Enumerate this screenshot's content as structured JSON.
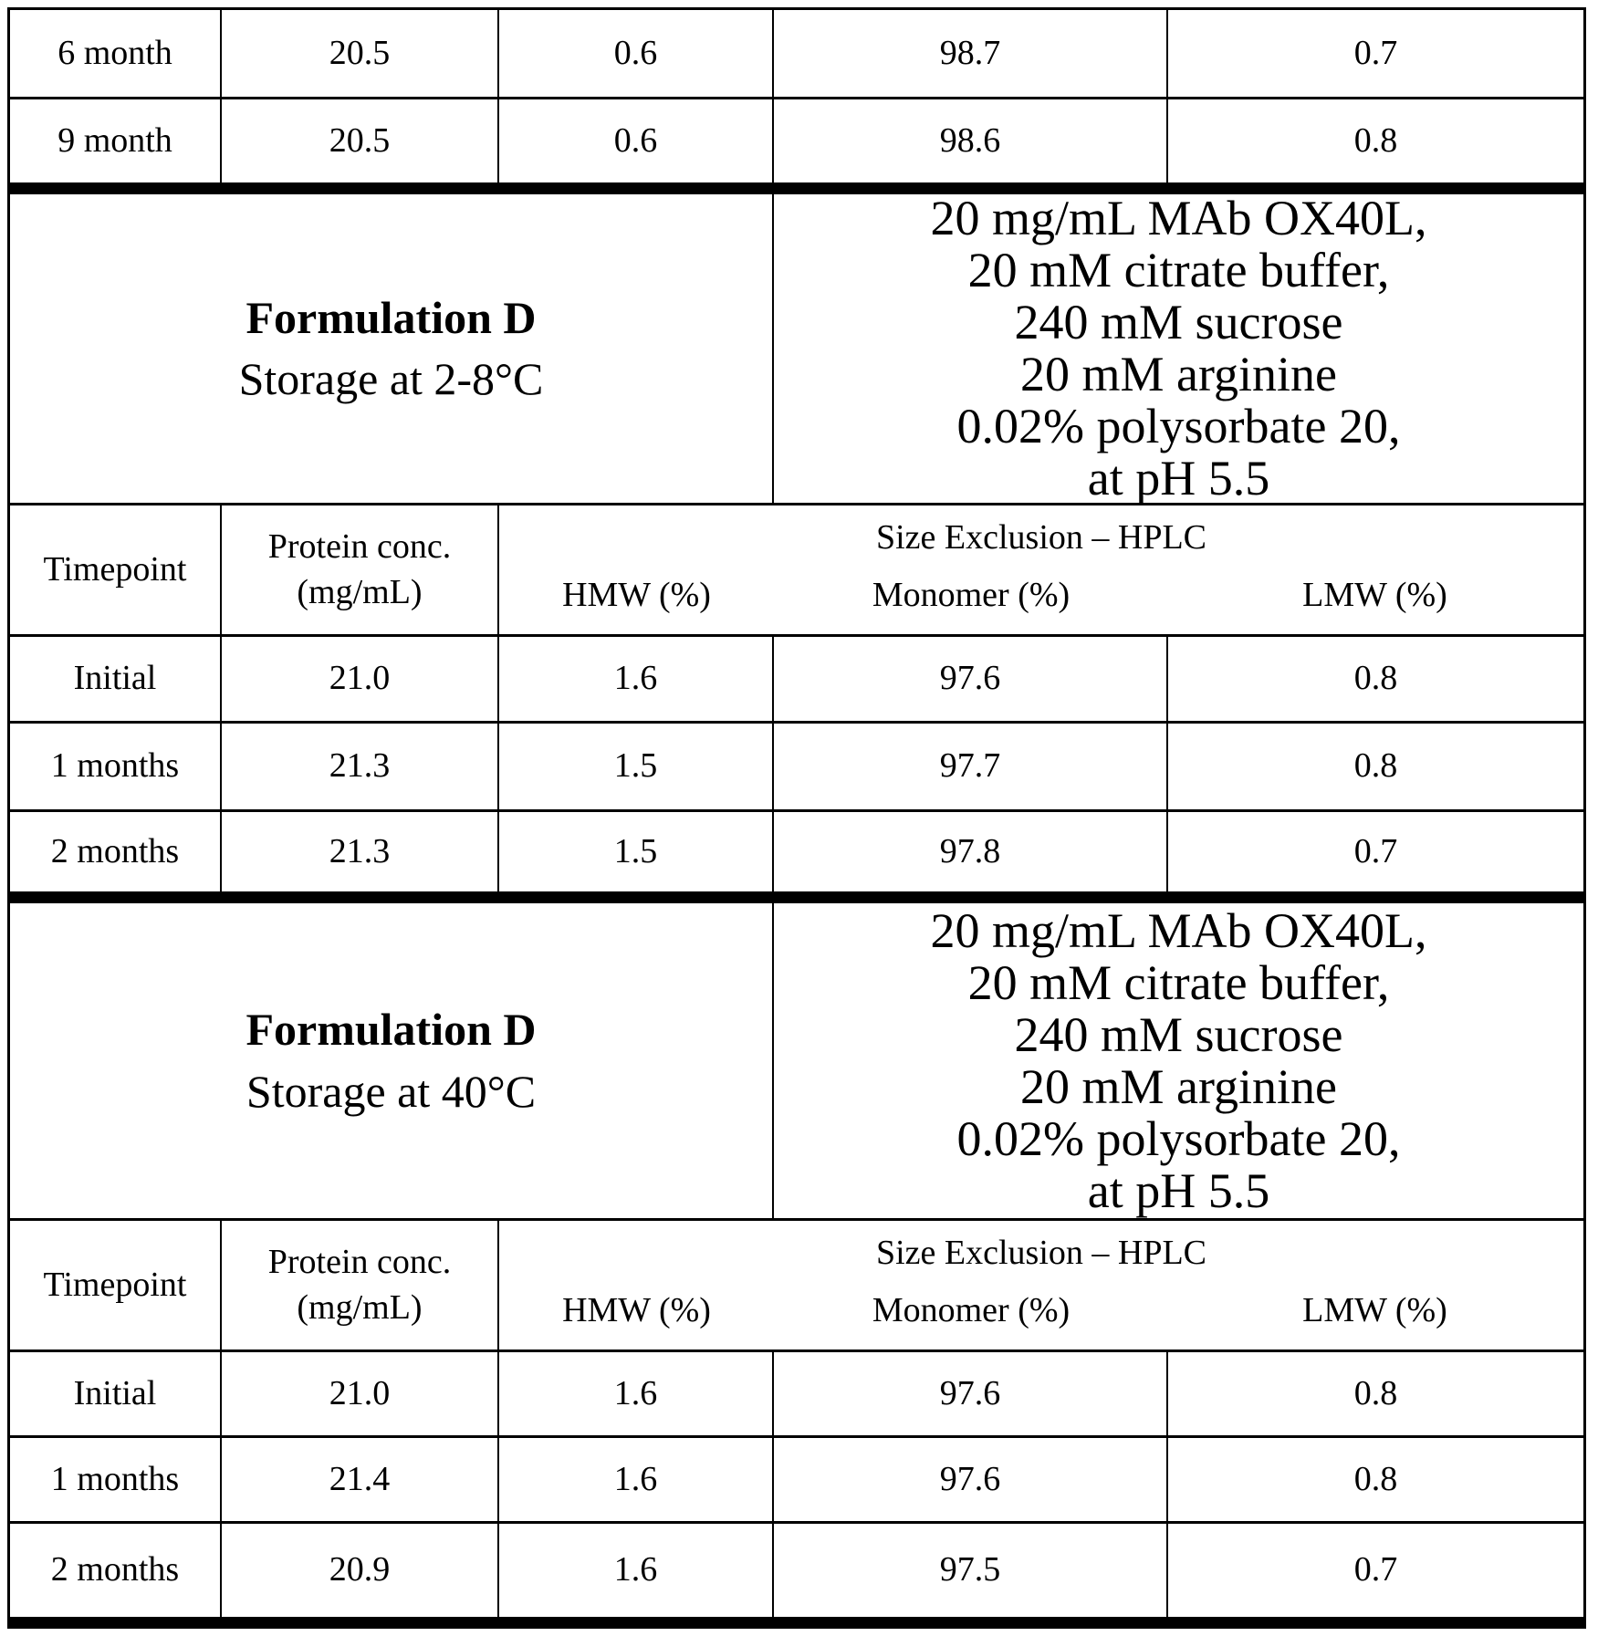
{
  "document": {
    "kind": "stability data table (scanned document page)"
  },
  "columns": [
    "Timepoint",
    "Protein conc. (mg/mL)",
    "HMW (%)",
    "Monomer (%)",
    "LMW (%)"
  ],
  "top_rows": [
    [
      "6 month",
      "20.5",
      "0.6",
      "98.7",
      "0.7"
    ],
    [
      "9 month",
      "20.5",
      "0.6",
      "98.6",
      "0.8"
    ]
  ],
  "sections": [
    {
      "title": "Formulation D",
      "storage": "Storage at 2-8°C",
      "composition": [
        "20 mg/mL MAb OX40L,",
        "20 mM citrate buffer,",
        "240 mM sucrose",
        "20 mM arginine",
        "0.02% polysorbate 20,",
        "at pH 5.5"
      ],
      "header": {
        "timepoint": "Timepoint",
        "protein_line1": "Protein conc.",
        "protein_line2": "(mg/mL)",
        "group": "Size Exclusion – HPLC",
        "hmw": "HMW (%)",
        "monomer": "Monomer (%)",
        "lmw": "LMW (%)"
      },
      "rows": [
        [
          "Initial",
          "21.0",
          "1.6",
          "97.6",
          "0.8"
        ],
        [
          "1 months",
          "21.3",
          "1.5",
          "97.7",
          "0.8"
        ],
        [
          "2 months",
          "21.3",
          "1.5",
          "97.8",
          "0.7"
        ]
      ]
    },
    {
      "title": "Formulation D",
      "storage": "Storage at 40°C",
      "composition": [
        "20 mg/mL MAb OX40L,",
        "20 mM citrate buffer,",
        "240 mM sucrose",
        "20 mM arginine",
        "0.02% polysorbate 20,",
        "at pH 5.5"
      ],
      "header": {
        "timepoint": "Timepoint",
        "protein_line1": "Protein conc.",
        "protein_line2": "(mg/mL)",
        "group": "Size Exclusion – HPLC",
        "hmw": "HMW (%)",
        "monomer": "Monomer (%)",
        "lmw": "LMW (%)"
      },
      "rows": [
        [
          "Initial",
          "21.0",
          "1.6",
          "97.6",
          "0.8"
        ],
        [
          "1 months",
          "21.4",
          "1.6",
          "97.6",
          "0.8"
        ],
        [
          "2 months",
          "20.9",
          "1.6",
          "97.5",
          "0.7"
        ]
      ]
    }
  ],
  "colors": {
    "ink": "#000000",
    "paper": "#ffffff"
  }
}
